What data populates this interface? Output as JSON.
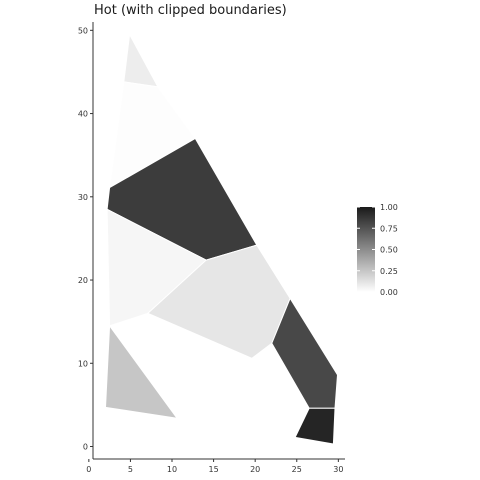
{
  "chart_data": {
    "type": "polygon",
    "title": "Hot (with clipped boundaries)",
    "xlabel": "",
    "ylabel": "",
    "xlim": [
      0.5,
      30.8
    ],
    "ylim": [
      -1.5,
      51
    ],
    "x_ticks": [
      0,
      5,
      10,
      15,
      20,
      25,
      30
    ],
    "x_tick_labels": [
      "0",
      "5",
      "10",
      "15",
      "20",
      "25",
      "30"
    ],
    "y_ticks": [
      0,
      10,
      20,
      30,
      40,
      50
    ],
    "y_tick_labels": [
      "0",
      "10",
      "20",
      "30",
      "40",
      "50"
    ],
    "grid": false,
    "legend": {
      "placement": "right",
      "min": 0,
      "max": 1,
      "ticks": [
        0.0,
        0.25,
        0.5,
        0.75,
        1.0
      ],
      "tick_labels": [
        "0.00",
        "0.25",
        "0.50",
        "0.75",
        "1.00"
      ],
      "color_low": "#ffffff",
      "color_high": "#1a1a1a"
    },
    "polygons": [
      {
        "value": 0.08,
        "points": [
          [
            4.9,
            49.5
          ],
          [
            8.3,
            43.2
          ],
          [
            4.2,
            43.8
          ]
        ]
      },
      {
        "value": 0.01,
        "points": [
          [
            4.2,
            43.8
          ],
          [
            8.3,
            43.2
          ],
          [
            12.8,
            37.0
          ],
          [
            2.5,
            31.1
          ]
        ]
      },
      {
        "value": 0.85,
        "points": [
          [
            2.5,
            31.1
          ],
          [
            12.8,
            37.0
          ],
          [
            20.2,
            24.2
          ],
          [
            14.1,
            22.4
          ],
          [
            2.2,
            28.5
          ]
        ]
      },
      {
        "value": 0.04,
        "points": [
          [
            2.2,
            28.5
          ],
          [
            14.1,
            22.4
          ],
          [
            7.1,
            16.0
          ],
          [
            2.5,
            14.5
          ]
        ]
      },
      {
        "value": 0.11,
        "points": [
          [
            7.1,
            16.0
          ],
          [
            14.1,
            22.4
          ],
          [
            20.2,
            24.2
          ],
          [
            24.2,
            17.8
          ],
          [
            22.0,
            12.4
          ],
          [
            19.6,
            10.6
          ]
        ]
      },
      {
        "value": 0.25,
        "points": [
          [
            2.5,
            14.5
          ],
          [
            10.6,
            3.4
          ],
          [
            2.0,
            4.7
          ]
        ]
      },
      {
        "value": 0.8,
        "points": [
          [
            22.0,
            12.4
          ],
          [
            24.2,
            17.8
          ],
          [
            29.9,
            8.6
          ],
          [
            29.6,
            4.6
          ],
          [
            26.5,
            4.6
          ]
        ]
      },
      {
        "value": 0.95,
        "points": [
          [
            26.5,
            4.6
          ],
          [
            29.6,
            4.6
          ],
          [
            29.4,
            0.3
          ],
          [
            24.8,
            1.1
          ]
        ]
      }
    ]
  }
}
